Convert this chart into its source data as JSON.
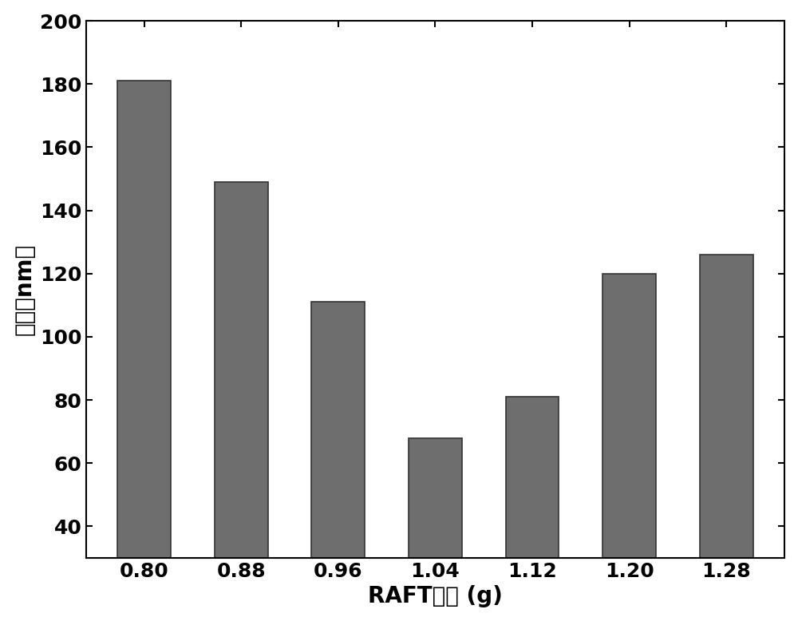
{
  "categories": [
    "0.80",
    "0.88",
    "0.96",
    "1.04",
    "1.12",
    "1.20",
    "1.28"
  ],
  "values": [
    181,
    149,
    111,
    68,
    81,
    120,
    126
  ],
  "bar_color": "#6e6e6e",
  "bar_edgecolor": "#333333",
  "xlabel": "RAFT试剂 (g)",
  "ylabel": "粒径（nm）",
  "ylim": [
    30,
    200
  ],
  "yticks": [
    40,
    60,
    80,
    100,
    120,
    140,
    160,
    180,
    200
  ],
  "background_color": "#ffffff",
  "xlabel_fontsize": 20,
  "ylabel_fontsize": 20,
  "tick_fontsize": 18,
  "bar_width": 0.55
}
